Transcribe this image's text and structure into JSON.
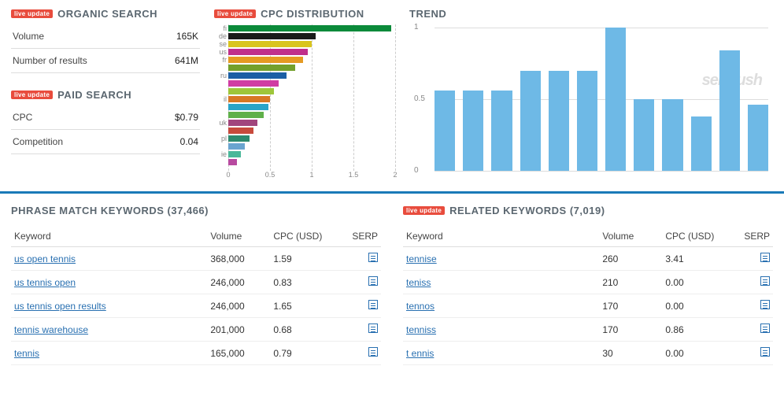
{
  "badge_text": "live update",
  "organic": {
    "title": "ORGANIC SEARCH",
    "volume_label": "Volume",
    "volume_value": "165K",
    "results_label": "Number of results",
    "results_value": "641M"
  },
  "paid": {
    "title": "PAID SEARCH",
    "cpc_label": "CPC",
    "cpc_value": "$0.79",
    "comp_label": "Competition",
    "comp_value": "0.04"
  },
  "cpc_dist": {
    "title": "CPC DISTRIBUTION",
    "type": "horizontal-bar",
    "xlim": [
      0,
      2
    ],
    "xticks": [
      "0",
      "0.5",
      "1",
      "1.5",
      "2"
    ],
    "bars": [
      {
        "label": "fi",
        "value": 1.95,
        "color": "#0b8a3a"
      },
      {
        "label": "de",
        "value": 1.05,
        "color": "#1a1a1a"
      },
      {
        "label": "se",
        "value": 1.0,
        "color": "#d9c41e"
      },
      {
        "label": "us",
        "value": 0.95,
        "color": "#c02f8b"
      },
      {
        "label": "fr",
        "value": 0.9,
        "color": "#e59a23"
      },
      {
        "label": "",
        "value": 0.8,
        "color": "#73a02c"
      },
      {
        "label": "ru",
        "value": 0.7,
        "color": "#1c5fa5"
      },
      {
        "label": "",
        "value": 0.6,
        "color": "#d03ca3"
      },
      {
        "label": "",
        "value": 0.55,
        "color": "#9ec63a"
      },
      {
        "label": "il",
        "value": 0.5,
        "color": "#d87824"
      },
      {
        "label": "",
        "value": 0.48,
        "color": "#2aa4c8"
      },
      {
        "label": "",
        "value": 0.42,
        "color": "#5fb04a"
      },
      {
        "label": "uk",
        "value": 0.35,
        "color": "#a1457c"
      },
      {
        "label": "",
        "value": 0.3,
        "color": "#c74a3c"
      },
      {
        "label": "pl",
        "value": 0.25,
        "color": "#2d8a6e"
      },
      {
        "label": "",
        "value": 0.2,
        "color": "#6aa4d0"
      },
      {
        "label": "ie",
        "value": 0.15,
        "color": "#4ab89a"
      },
      {
        "label": "",
        "value": 0.1,
        "color": "#b84aa0"
      }
    ]
  },
  "trend": {
    "title": "TREND",
    "type": "bar",
    "ylim": [
      0,
      1
    ],
    "yticks": [
      "0",
      "0.5",
      "1"
    ],
    "bar_color": "#6eb9e6",
    "values": [
      0.56,
      0.56,
      0.56,
      0.7,
      0.7,
      0.7,
      1.0,
      0.5,
      0.5,
      0.38,
      0.84,
      0.46
    ],
    "watermark": "semrush"
  },
  "phrase": {
    "title_prefix": "PHRASE MATCH KEYWORDS",
    "count": "37,466",
    "columns": {
      "kw": "Keyword",
      "vol": "Volume",
      "cpc": "CPC (USD)",
      "serp": "SERP"
    },
    "rows": [
      {
        "kw": "us open tennis",
        "vol": "368,000",
        "cpc": "1.59"
      },
      {
        "kw": "us tennis open",
        "vol": "246,000",
        "cpc": "0.83"
      },
      {
        "kw": "us tennis open results",
        "vol": "246,000",
        "cpc": "1.65"
      },
      {
        "kw": "tennis warehouse",
        "vol": "201,000",
        "cpc": "0.68"
      },
      {
        "kw": "tennis",
        "vol": "165,000",
        "cpc": "0.79"
      }
    ]
  },
  "related": {
    "title_prefix": "RELATED KEYWORDS",
    "count": "7,019",
    "columns": {
      "kw": "Keyword",
      "vol": "Volume",
      "cpc": "CPC (USD)",
      "serp": "SERP"
    },
    "rows": [
      {
        "kw": "tennise",
        "vol": "260",
        "cpc": "3.41"
      },
      {
        "kw": "teniss",
        "vol": "210",
        "cpc": "0.00"
      },
      {
        "kw": "tennos",
        "vol": "170",
        "cpc": "0.00"
      },
      {
        "kw": "tenniss",
        "vol": "170",
        "cpc": "0.86"
      },
      {
        "kw": "t ennis",
        "vol": "30",
        "cpc": "0.00"
      }
    ]
  }
}
